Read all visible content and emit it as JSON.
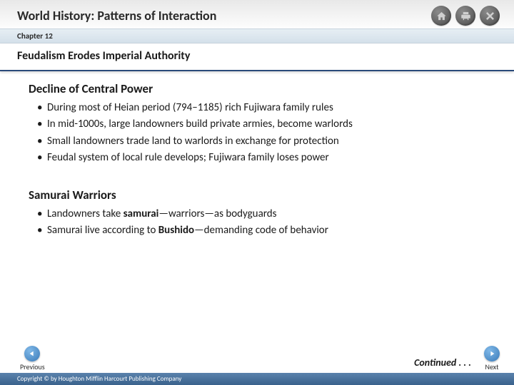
{
  "header": {
    "book_title": "World History: Patterns of Interaction",
    "chapter_label": "Chapter 12"
  },
  "slide": {
    "title": "Feudalism Erodes Imperial Authority",
    "sections": [
      {
        "heading": "Decline of Central Power",
        "bullets": [
          "During most of Heian period (794–1185) rich Fujiwara family rules",
          "In mid-1000s, large landowners build private armies, become warlords",
          "Small landowners trade land to warlords in exchange for protection",
          "Feudal system of local rule develops; Fujiwara family loses power"
        ]
      },
      {
        "heading": "Samurai Warriors",
        "bullets_html": [
          "Landowners take <b>samurai</b>—warriors—as bodyguards",
          "Samurai live according to <b>Bushido</b>—demanding code of behavior"
        ]
      }
    ]
  },
  "nav": {
    "previous_label": "Previous",
    "next_label": "Next",
    "continued_label": "Continued . . ."
  },
  "footer": {
    "copyright": "Copyright © by Houghton Mifflin Harcourt Publishing Company"
  },
  "colors": {
    "chapter_bar_bg": "#dce6ee",
    "title_underline": "#2a4a7a",
    "nav_arrow": "#4a86c0",
    "copyright_bg": "#4a6e98"
  }
}
